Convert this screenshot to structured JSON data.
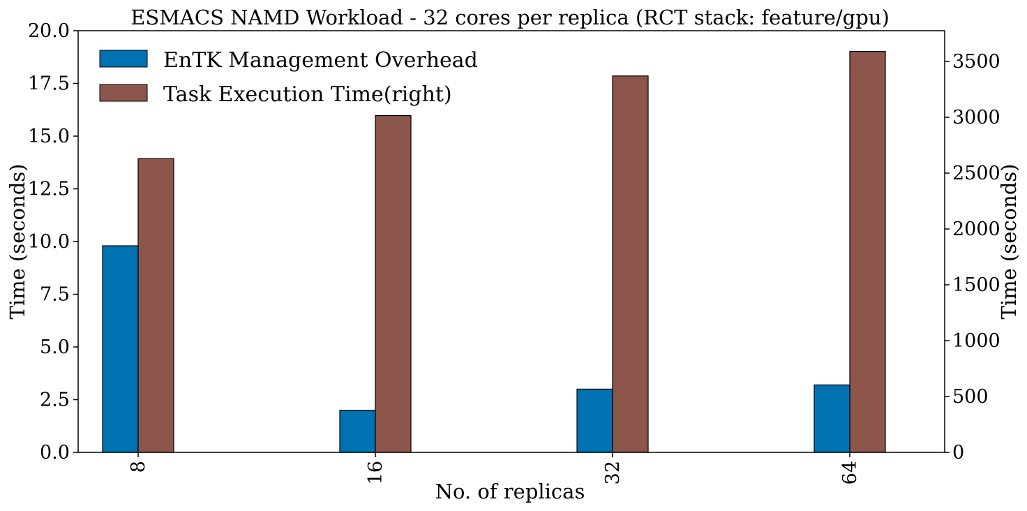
{
  "chart_data": {
    "type": "bar",
    "title": "ESMACS NAMD Workload - 32 cores per replica (RCT stack: feature/gpu)",
    "xlabel": "No. of replicas",
    "ylabel": "Time (seconds)",
    "ylabel_right": "Time (seconds)",
    "categories": [
      "8",
      "16",
      "32",
      "64"
    ],
    "ylim": [
      0,
      20
    ],
    "ylim_right": [
      0,
      3775
    ],
    "yticks": [
      "0.0",
      "2.5",
      "5.0",
      "7.5",
      "10.0",
      "12.5",
      "15.0",
      "17.5",
      "20.0"
    ],
    "yticks_right": [
      "0",
      "500",
      "1000",
      "1500",
      "2000",
      "2500",
      "3000",
      "3500"
    ],
    "legend_position": "top-left",
    "grid": false,
    "series": [
      {
        "name": "EnTK Management Overhead",
        "axis": "left",
        "color": "#0072b2",
        "values": [
          9.8,
          2.0,
          3.0,
          3.2
        ]
      },
      {
        "name": "Task Execution Time(right)",
        "axis": "right",
        "color": "#8c564b",
        "values": [
          2630,
          3015,
          3370,
          3590
        ]
      }
    ]
  }
}
